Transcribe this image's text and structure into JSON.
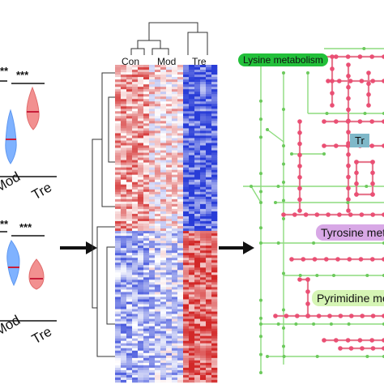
{
  "violin_panel": {
    "top": {
      "significance": [
        "**",
        "***"
      ],
      "groups": [
        "Mod",
        "Tre"
      ]
    },
    "bottom": {
      "significance": [
        "**",
        "***"
      ],
      "groups": [
        "Mod",
        "Tre"
      ]
    }
  },
  "heatmap": {
    "column_groups": [
      "Con",
      "Mod",
      "Tre"
    ]
  },
  "pathway_map": {
    "labels": [
      {
        "text": "Lysine metabolism",
        "color": "#22c03a"
      },
      {
        "text": "Tr",
        "color": "#7fb8c9"
      },
      {
        "text": "Tyrosine meta",
        "color": "#d8a8e6"
      },
      {
        "text": "Pyrimidine me",
        "color": "#d6f5b5"
      }
    ]
  },
  "colors": {
    "control_violin": "#7fb2ff",
    "treatment_violin": "#f08080",
    "heat_high": "#d61f1f",
    "heat_low": "#2b3fd6",
    "pathway_node": "#ea4f74",
    "pathway_edge": "#8ddc7e"
  }
}
